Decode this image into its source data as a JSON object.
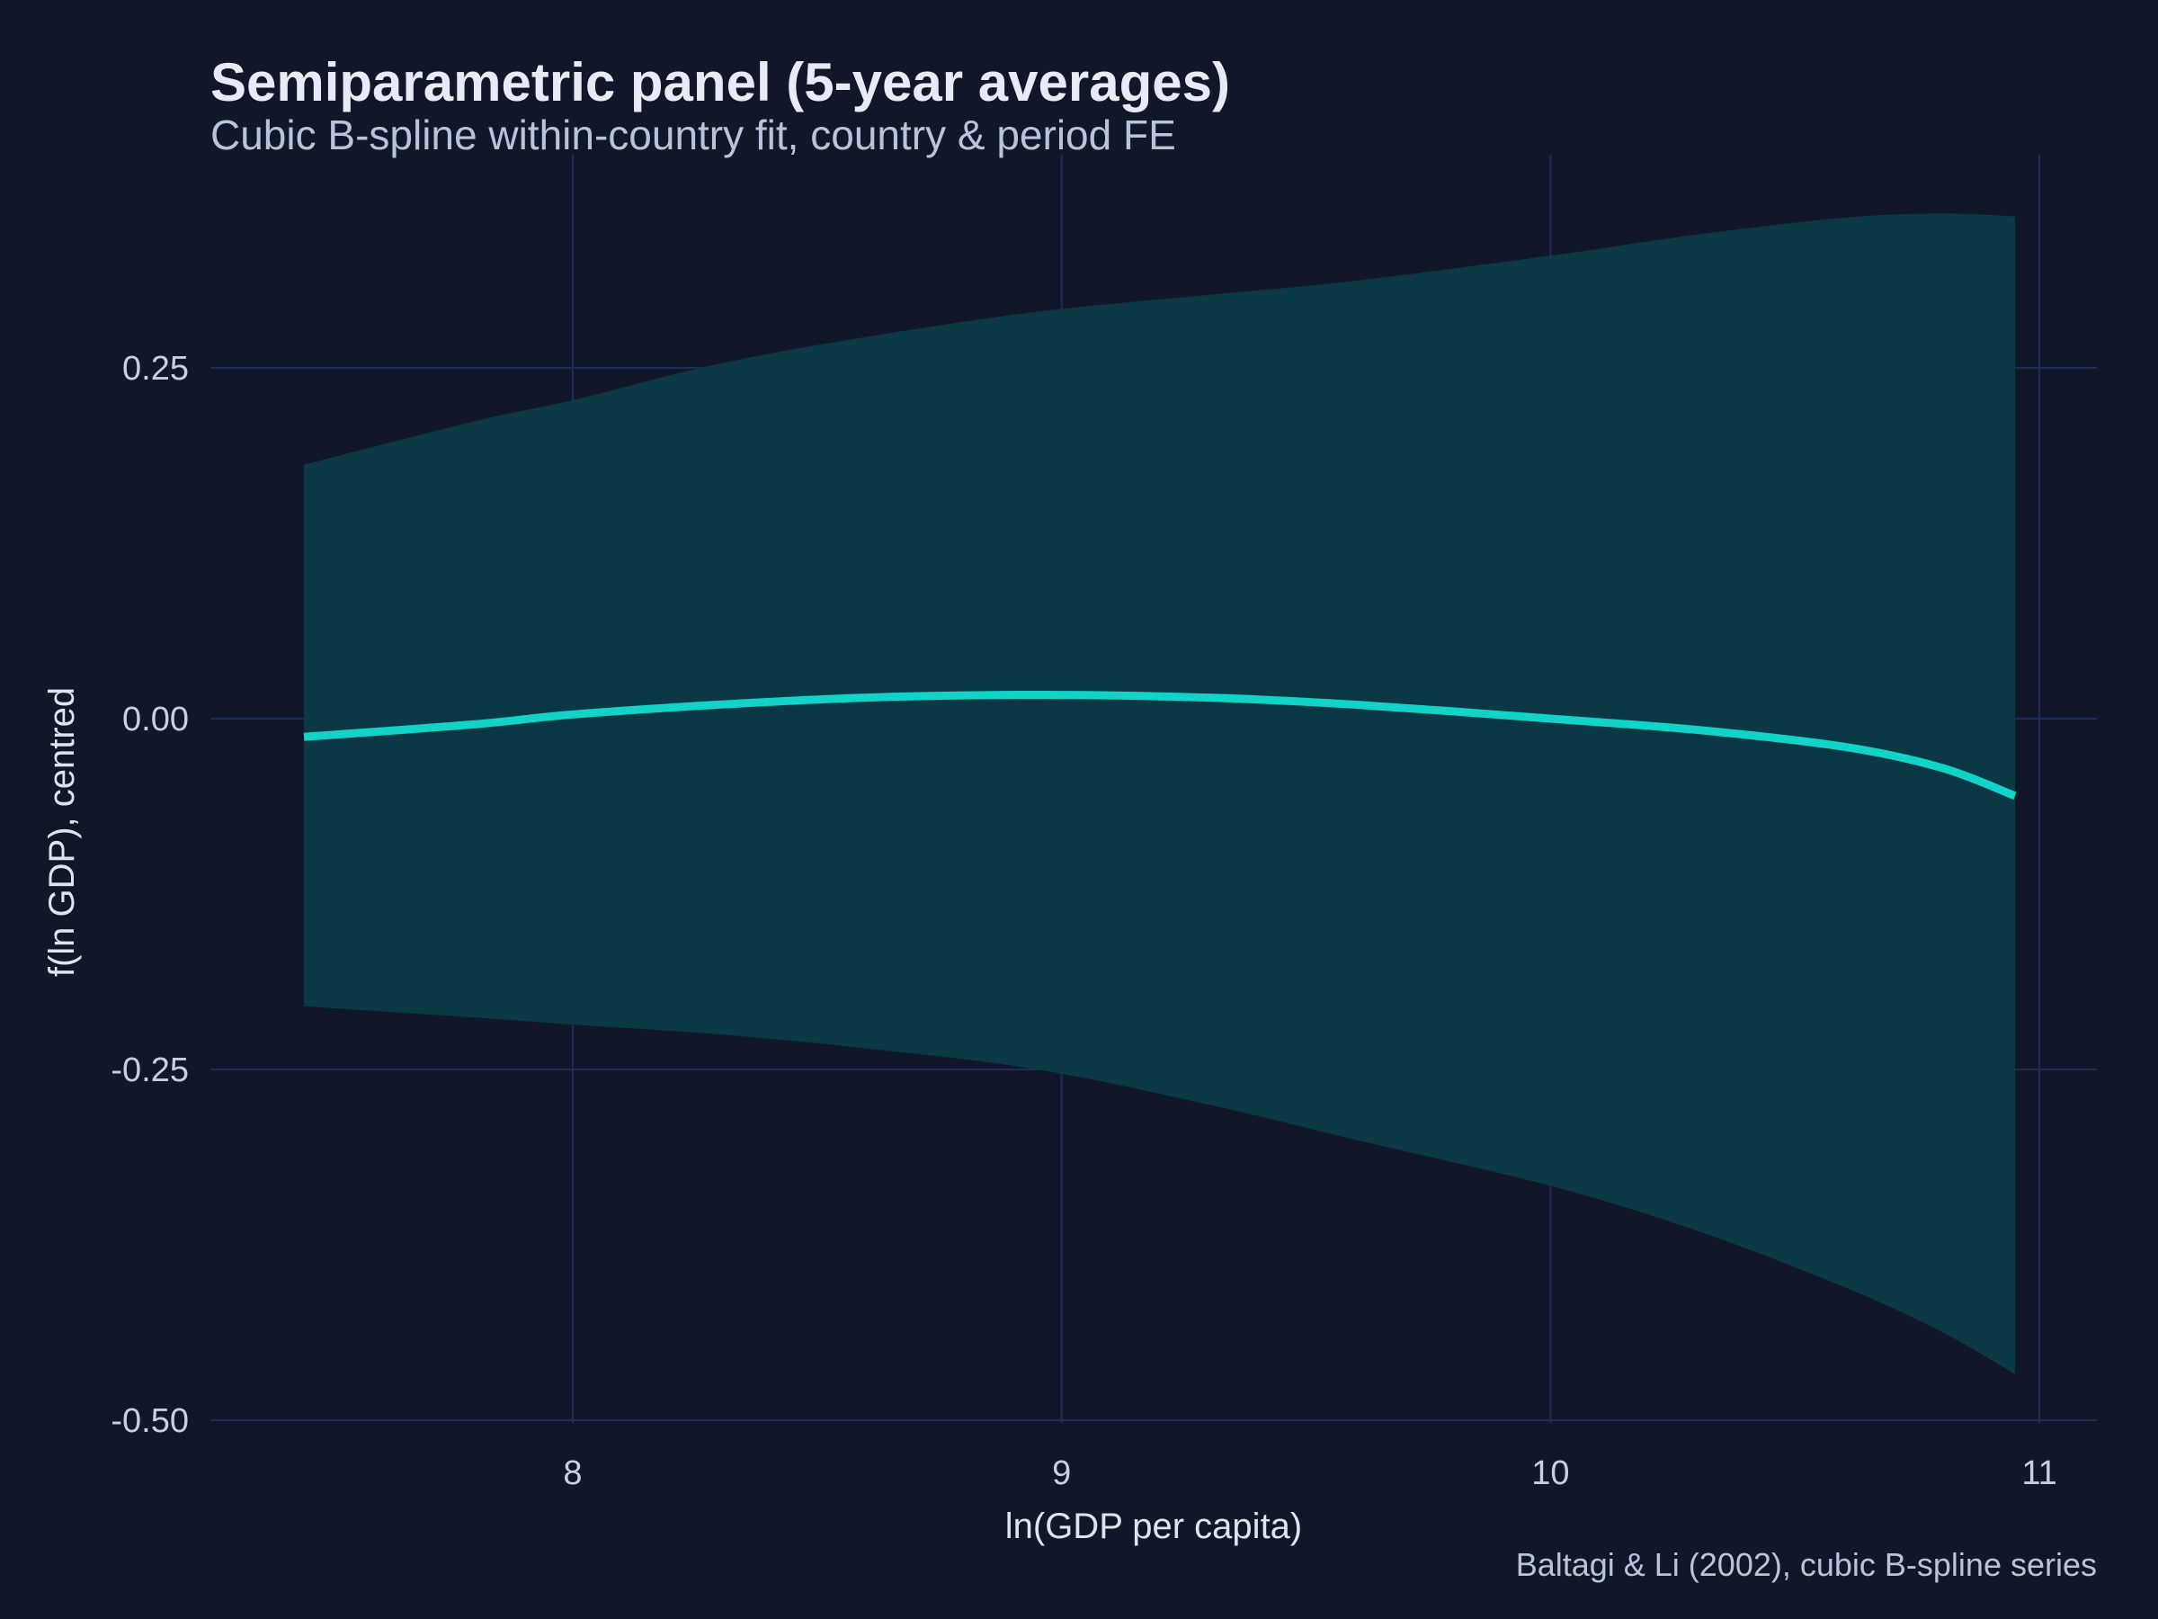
{
  "chart_data": {
    "type": "line",
    "title": "Semiparametric panel (5-year averages)",
    "subtitle": "Cubic B-spline within-country fit, country & period FE",
    "xlabel": "ln(GDP per capita)",
    "ylabel": "f(ln GDP), centred",
    "caption": "Baltagi & Li (2002), cubic B-spline series",
    "xlim": [
      7.27,
      11.12
    ],
    "ylim": [
      -0.5,
      0.4
    ],
    "x_ticks": [
      8,
      9,
      10,
      11
    ],
    "x_tick_labels": [
      "8",
      "9",
      "10",
      "11"
    ],
    "y_ticks": [
      -0.5,
      -0.25,
      0.0,
      0.25
    ],
    "y_tick_labels": [
      "-0.50",
      "-0.25",
      "0.00",
      "0.25"
    ],
    "grid": true,
    "legend": "none",
    "colors": {
      "background": "#111729",
      "grid": "#1d2d57",
      "line": "#12d3c8",
      "band": "#0b3a47",
      "title": "#e8ebf5",
      "subtitle": "#b9c3dc",
      "axis_text": "#c9cfdf"
    },
    "series": [
      {
        "x": [
          7.45,
          7.8,
          8.0,
          8.3,
          8.6,
          8.95,
          9.3,
          9.6,
          10.0,
          10.3,
          10.6,
          10.8,
          10.95
        ],
        "y": [
          -0.013,
          -0.004,
          0.003,
          0.01,
          0.015,
          0.017,
          0.015,
          0.01,
          0.0,
          -0.008,
          -0.02,
          -0.035,
          -0.055
        ],
        "lower": [
          -0.205,
          -0.213,
          -0.218,
          -0.225,
          -0.235,
          -0.25,
          -0.275,
          -0.3,
          -0.333,
          -0.365,
          -0.405,
          -0.437,
          -0.467
        ],
        "upper": [
          0.181,
          0.212,
          0.227,
          0.253,
          0.272,
          0.29,
          0.302,
          0.312,
          0.33,
          0.345,
          0.357,
          0.36,
          0.358
        ]
      }
    ]
  }
}
